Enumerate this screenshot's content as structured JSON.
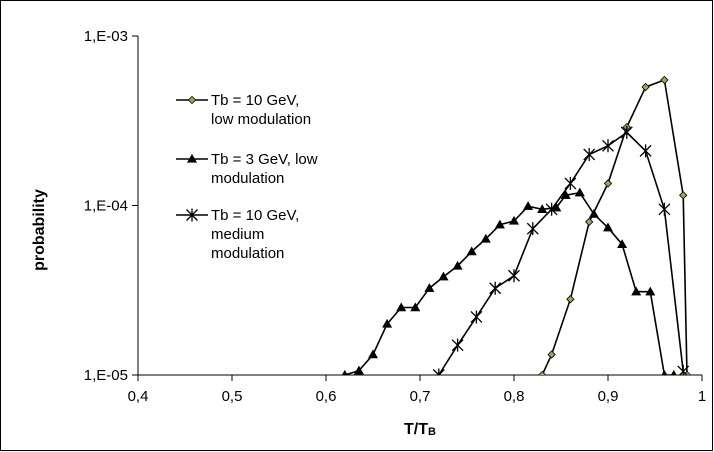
{
  "chart_data": {
    "type": "line",
    "xlabel": "T/T",
    "xlabel_sub": "B",
    "ylabel": "probability",
    "xlim": [
      0.4,
      1.0
    ],
    "ylim": [
      1e-05,
      0.001
    ],
    "y_scale": "log",
    "x_ticks": [
      "0,4",
      "0,5",
      "0,6",
      "0,7",
      "0,8",
      "0,9",
      "1"
    ],
    "y_ticks": [
      "1,E-05",
      "1,E-04",
      "1,E-03"
    ],
    "grid": false,
    "legend_position": "top-left",
    "series": [
      {
        "name": "Tb = 10 GeV, low modulation",
        "legend_lines": [
          "Tb = 10 GeV,",
          "low modulation"
        ],
        "marker": "diamond",
        "marker_fill": "#a3a35a",
        "x": [
          0.83,
          0.84,
          0.86,
          0.88,
          0.9,
          0.92,
          0.94,
          0.96,
          0.98,
          0.984
        ],
        "y": [
          1e-05,
          1.32e-05,
          2.8e-05,
          8e-05,
          0.000135,
          0.00029,
          0.0005,
          0.00055,
          0.000115,
          1e-05
        ]
      },
      {
        "name": "Tb = 3 GeV, low modulation",
        "legend_lines": [
          "Tb = 3 GeV, low",
          "modulation"
        ],
        "marker": "triangle",
        "marker_fill": "#000000",
        "x": [
          0.62,
          0.635,
          0.65,
          0.665,
          0.68,
          0.695,
          0.71,
          0.725,
          0.74,
          0.755,
          0.77,
          0.785,
          0.8,
          0.815,
          0.83,
          0.845,
          0.855,
          0.87,
          0.885,
          0.9,
          0.915,
          0.93,
          0.945,
          0.96,
          0.97
        ],
        "y": [
          1e-05,
          1.06e-05,
          1.32e-05,
          2e-05,
          2.5e-05,
          2.5e-05,
          3.25e-05,
          3.8e-05,
          4.4e-05,
          5.35e-05,
          6.35e-05,
          7.7e-05,
          8.1e-05,
          9.9e-05,
          9.5e-05,
          9.7e-05,
          0.000115,
          0.000119,
          8.9e-05,
          7.4e-05,
          5.9e-05,
          3.1e-05,
          3.1e-05,
          1e-05,
          1e-05
        ]
      },
      {
        "name": "Tb = 10 GeV, medium modulation",
        "legend_lines": [
          "Tb = 10 GeV,",
          "medium",
          "modulation"
        ],
        "marker": "asterisk",
        "marker_fill": "#000000",
        "x": [
          0.72,
          0.74,
          0.76,
          0.78,
          0.8,
          0.82,
          0.84,
          0.86,
          0.88,
          0.9,
          0.92,
          0.94,
          0.96,
          0.98
        ],
        "y": [
          1e-05,
          1.5e-05,
          2.2e-05,
          3.25e-05,
          3.85e-05,
          7.3e-05,
          9.5e-05,
          0.000135,
          0.0002,
          0.000225,
          0.00027,
          0.00021,
          9.5e-05,
          1.05e-05
        ]
      }
    ]
  }
}
